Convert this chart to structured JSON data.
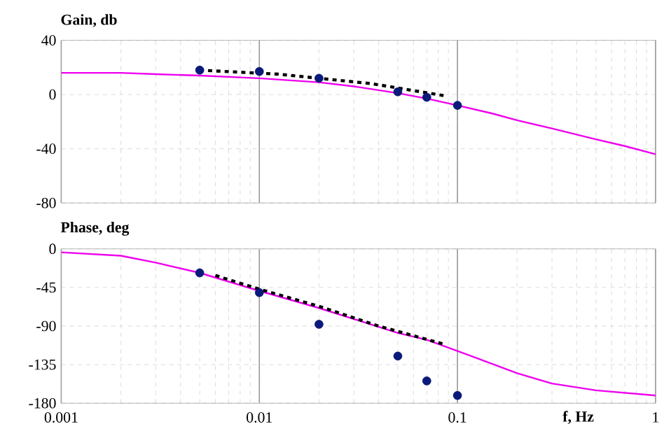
{
  "chart_data": [
    {
      "type": "line",
      "title": "Gain, db",
      "log": "x",
      "grid": true,
      "tick_labels": "y",
      "xlim": [
        0.001,
        1
      ],
      "xticks": [
        0.001,
        0.01,
        0.1,
        1
      ],
      "ylim": [
        -80,
        40
      ],
      "yticks": [
        -80,
        -40,
        0,
        40
      ],
      "series": [
        {
          "color": "#ee00ee",
          "marker": "none",
          "line_style": "solid",
          "x": [
            0.001,
            0.002,
            0.003,
            0.005,
            0.01,
            0.02,
            0.03,
            0.05,
            0.07,
            0.1,
            0.15,
            0.2,
            0.3,
            0.5,
            0.7,
            1
          ],
          "values": [
            16,
            16,
            15,
            14,
            12,
            9,
            6,
            1,
            -3,
            -8,
            -14,
            -19,
            -25,
            -33,
            -38,
            -44
          ]
        },
        {
          "color": "#000000",
          "marker": "none",
          "line_style": "dotted",
          "x": [
            0.005,
            0.0125,
            0.02,
            0.037,
            0.087
          ],
          "values": [
            18,
            15,
            12,
            8,
            -1
          ]
        },
        {
          "type": "scatter",
          "color": "#0a1a7a",
          "marker": "circle",
          "x": [
            0.005,
            0.01,
            0.02,
            0.05,
            0.07,
            0.1
          ],
          "values": [
            18,
            17,
            12,
            2,
            -2,
            -8
          ]
        }
      ]
    },
    {
      "type": "line",
      "title": "Phase, deg",
      "xlabel": "f, Hz",
      "log": "x",
      "grid": true,
      "xlim": [
        0.001,
        1
      ],
      "xticks": [
        0.001,
        0.01,
        0.1,
        1
      ],
      "ylim": [
        -180,
        0
      ],
      "yticks": [
        -180,
        -135,
        -90,
        -45,
        0
      ],
      "series": [
        {
          "color": "#ee00ee",
          "marker": "none",
          "line_style": "solid",
          "x": [
            0.001,
            0.002,
            0.003,
            0.005,
            0.01,
            0.02,
            0.05,
            0.07,
            0.1,
            0.2,
            0.3,
            0.5,
            1
          ],
          "values": [
            -4,
            -8,
            -16,
            -28,
            -49,
            -69,
            -98,
            -106,
            -119,
            -145,
            -157,
            -165,
            -171
          ]
        },
        {
          "color": "#000000",
          "marker": "none",
          "line_style": "dotted",
          "x": [
            0.006,
            0.01,
            0.02,
            0.04,
            0.085
          ],
          "values": [
            -31,
            -47,
            -67,
            -90,
            -111
          ]
        },
        {
          "type": "scatter",
          "color": "#0a1a7a",
          "marker": "circle",
          "x": [
            0.005,
            0.01,
            0.02,
            0.05,
            0.07,
            0.1
          ],
          "values": [
            -28,
            -51,
            -88,
            -125,
            -154,
            -171
          ]
        }
      ]
    }
  ]
}
